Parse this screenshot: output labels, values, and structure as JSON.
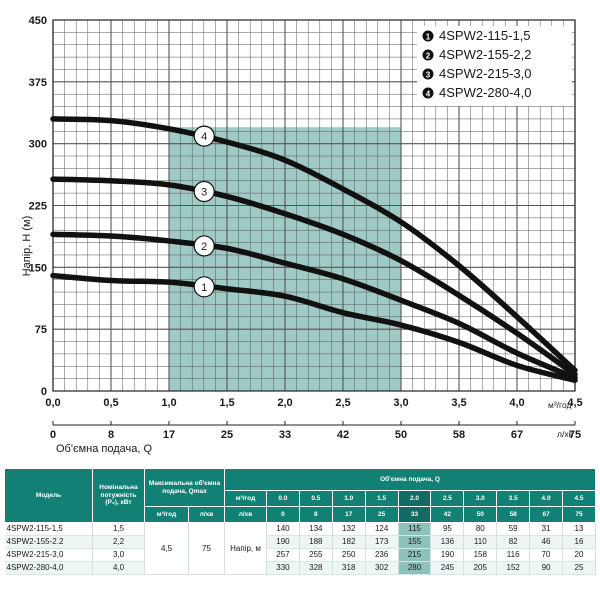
{
  "chart_data": {
    "type": "line",
    "y_ticks": [
      "450",
      "375",
      "300",
      "225",
      "150",
      "75",
      "0"
    ],
    "ylim": [
      0,
      450
    ],
    "ylabel": "Напір, H (м)",
    "x_ticks_q": [
      "0,0",
      "0,5",
      "1,0",
      "1,5",
      "2,0",
      "2,5",
      "3,0",
      "3,5",
      "4,0",
      "4,5"
    ],
    "xlim": [
      0,
      4.5
    ],
    "x_unit": "м³/год",
    "x2_ticks": [
      "0",
      "8",
      "17",
      "25",
      "33",
      "42",
      "50",
      "58",
      "67",
      "75"
    ],
    "x2_unit": "л/хв",
    "x2label": "Об'ємна подача, Q",
    "highlight_range": [
      1.0,
      3.0
    ],
    "grid": true,
    "legend_position": "top-right",
    "x": [
      0.0,
      0.5,
      1.0,
      1.5,
      2.0,
      2.5,
      3.0,
      3.5,
      4.0,
      4.5
    ],
    "series": [
      {
        "num": "1",
        "name": "4SPW2-115-1,5",
        "values": [
          140,
          134,
          132,
          124,
          115,
          95,
          80,
          59,
          31,
          13
        ]
      },
      {
        "num": "2",
        "name": "4SPW2-155-2,2",
        "values": [
          190,
          188,
          182,
          173,
          155,
          136,
          110,
          82,
          46,
          16
        ]
      },
      {
        "num": "3",
        "name": "4SPW2-215-3,0",
        "values": [
          257,
          255,
          250,
          236,
          215,
          190,
          158,
          116,
          70,
          20
        ]
      },
      {
        "num": "4",
        "name": "4SPW2-280-4,0",
        "values": [
          330,
          328,
          318,
          302,
          280,
          245,
          205,
          152,
          90,
          25
        ]
      }
    ],
    "marker_x": 1.2
  },
  "colors": {
    "grid": "#555555",
    "curve": "#111111",
    "highlight": "#8fc1bb",
    "table_header": "#138076"
  },
  "table": {
    "h_model": "Модель",
    "h_power": "Номінальна потужність (P₂), кВт",
    "h_qmax": "Максимальна об'ємна подача, Qmax",
    "h_qmax_m3": "м³/год",
    "h_qmax_lmin": "л/хв",
    "h_flow": "Об'ємна подача, Q",
    "h_m3": "м³/год",
    "h_lmin": "л/хв",
    "m3_values": [
      "0.0",
      "0.5",
      "1.0",
      "1.5",
      "2.0",
      "2.5",
      "3.0",
      "3.5",
      "4.0",
      "4.5"
    ],
    "lmin_values": [
      "0",
      "8",
      "17",
      "25",
      "33",
      "42",
      "50",
      "58",
      "67",
      "75"
    ],
    "qmax_m3": "4,5",
    "qmax_lmin": "75",
    "head_label": "Напір, м",
    "highlight_col": 4,
    "rows": [
      {
        "model": "4SPW2-115-1,5",
        "power": "1,5",
        "values": [
          "140",
          "134",
          "132",
          "124",
          "115",
          "95",
          "80",
          "59",
          "31",
          "13"
        ]
      },
      {
        "model": "4SPW2-155-2.2",
        "power": "2,2",
        "values": [
          "190",
          "188",
          "182",
          "173",
          "155",
          "136",
          "110",
          "82",
          "46",
          "16"
        ]
      },
      {
        "model": "4SPW2-215-3,0",
        "power": "3,0",
        "values": [
          "257",
          "255",
          "250",
          "236",
          "215",
          "190",
          "158",
          "116",
          "70",
          "20"
        ]
      },
      {
        "model": "4SPW2-280-4,0",
        "power": "4,0",
        "values": [
          "330",
          "328",
          "318",
          "302",
          "280",
          "245",
          "205",
          "152",
          "90",
          "25"
        ]
      }
    ]
  }
}
